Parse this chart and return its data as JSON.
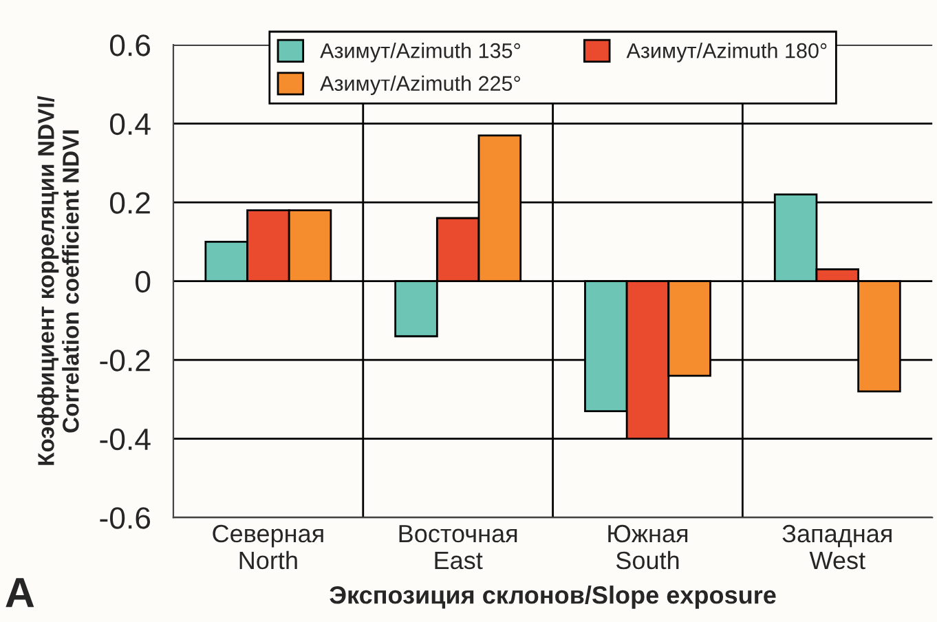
{
  "chart_data": {
    "type": "bar",
    "xlabel": "Экспозиция склонов/Slope exposure",
    "ylabel": "Коэффициент корреляции NDVI/\nCorrelation coefficient NDVI",
    "annotations": [
      "A"
    ],
    "categories": [
      "Северная\nNorth",
      "Восточная\nEast",
      "Южная\nSouth",
      "Западная\nWest"
    ],
    "series": [
      {
        "name": "Азимут/Azimuth 135°",
        "color": "#6cc5b5",
        "values": [
          0.1,
          -0.14,
          -0.33,
          0.22
        ]
      },
      {
        "name": "Азимут/Azimuth 180°",
        "color": "#ea4a2e",
        "values": [
          0.18,
          0.16,
          -0.4,
          0.03
        ]
      },
      {
        "name": "Азимут/Azimuth 225°",
        "color": "#f58c2e",
        "values": [
          0.18,
          0.37,
          -0.24,
          -0.28
        ]
      }
    ],
    "ylim": [
      -0.6,
      0.6
    ],
    "yticks": [
      {
        "value": -0.6,
        "label": "-0.6"
      },
      {
        "value": -0.4,
        "label": "-0.4"
      },
      {
        "value": -0.2,
        "label": "-0.2"
      },
      0,
      0.2,
      0.4,
      0.6
    ],
    "grid": true,
    "legend": "top"
  }
}
